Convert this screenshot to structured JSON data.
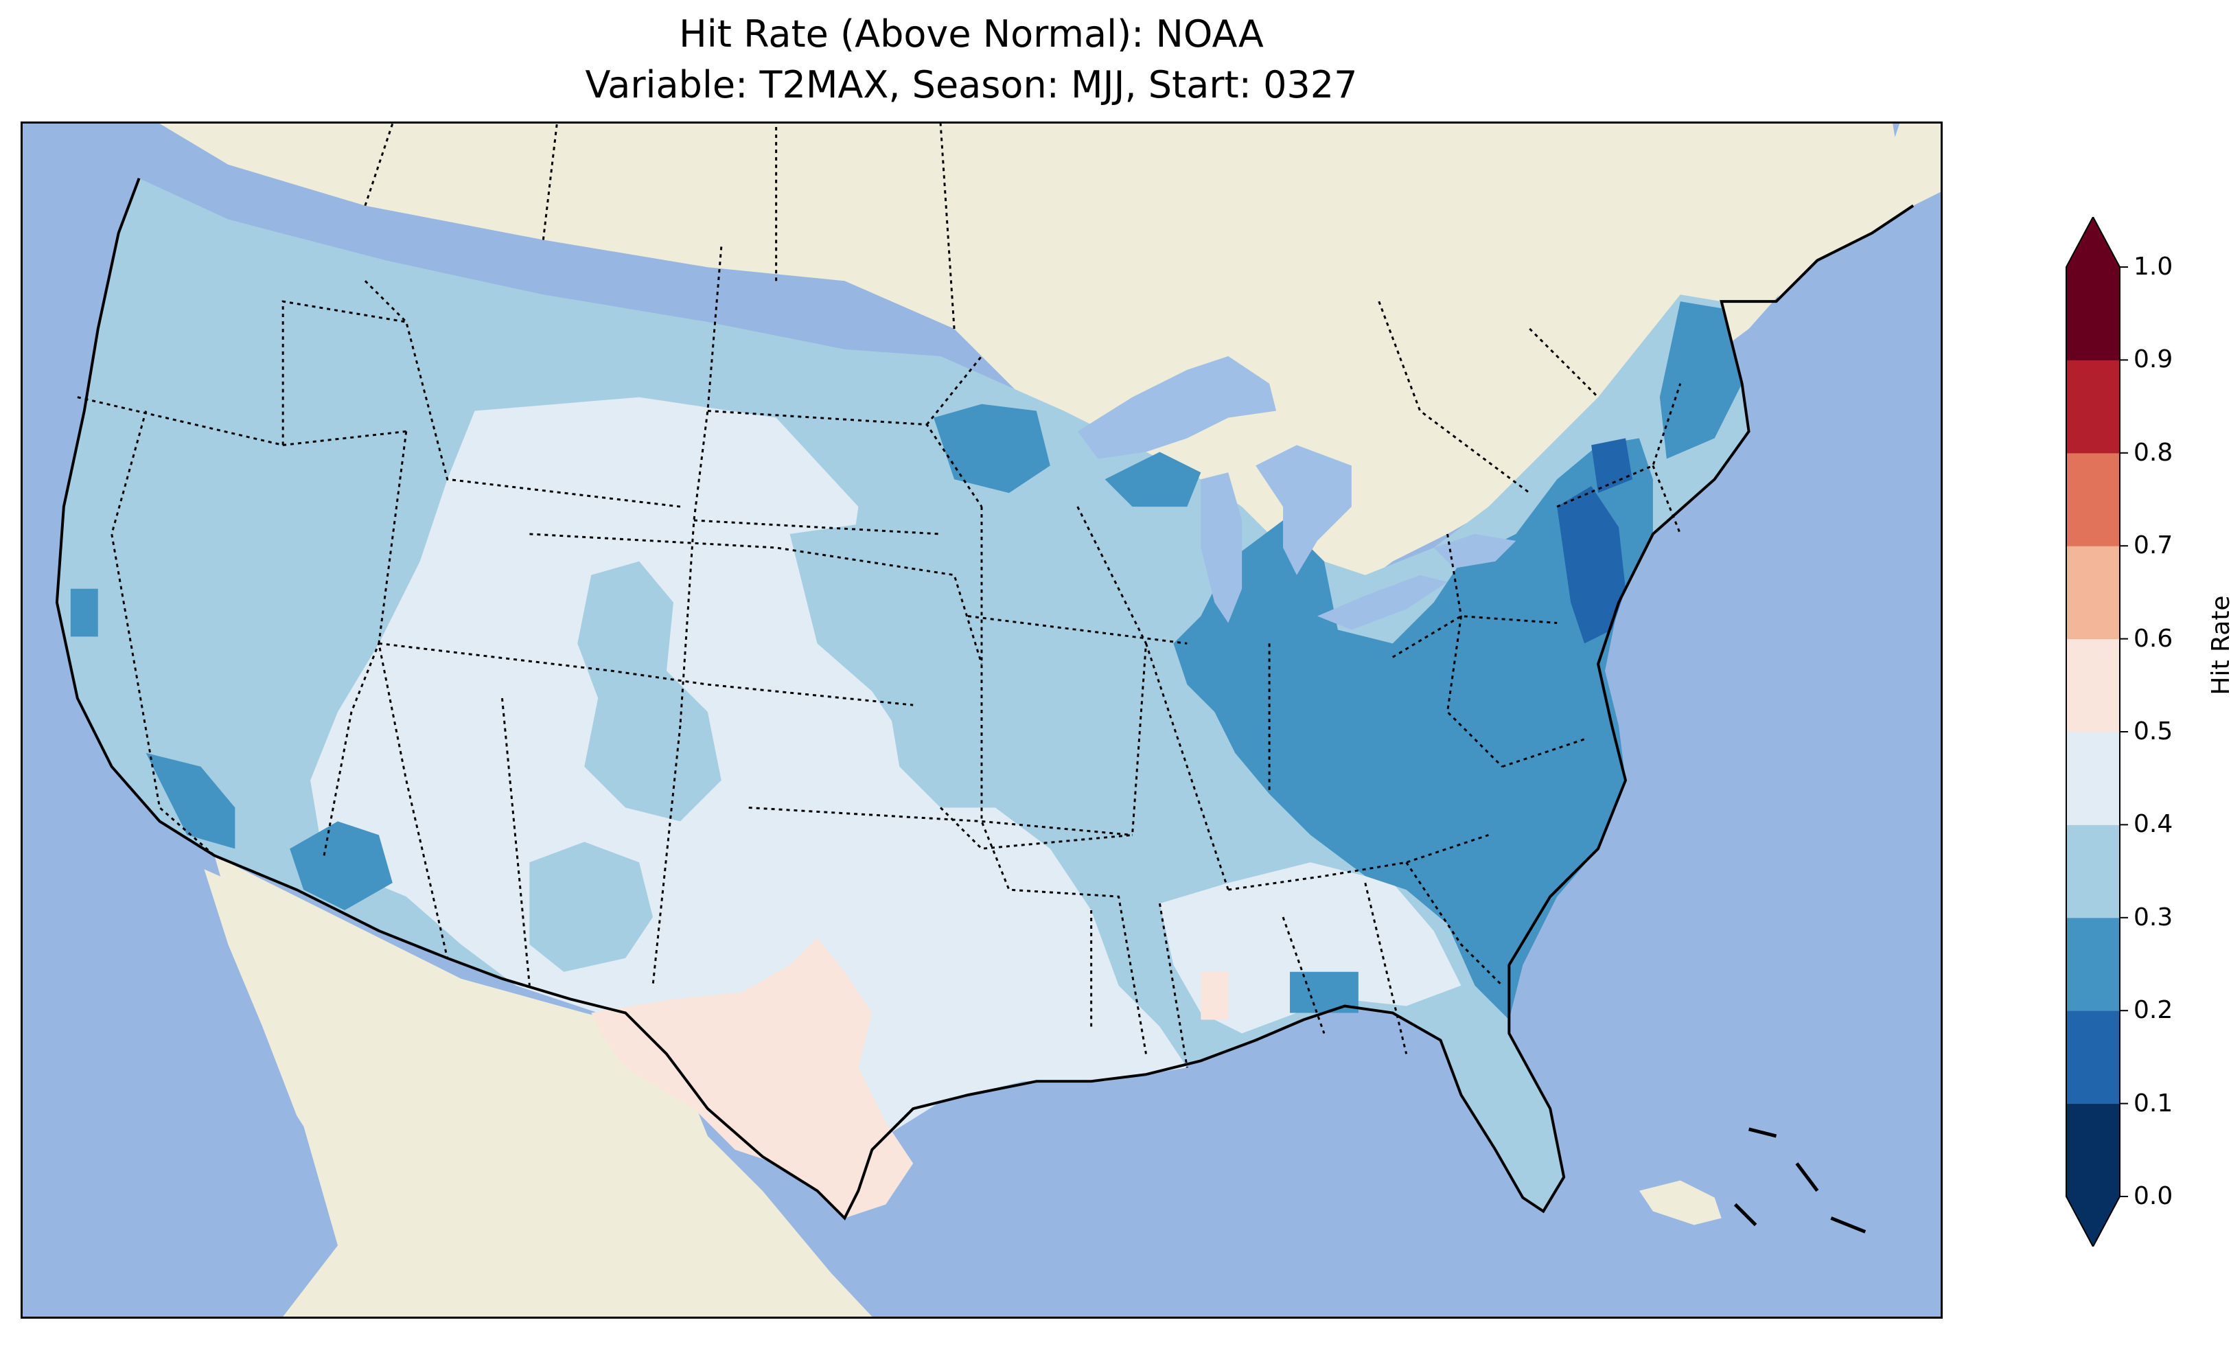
{
  "title": {
    "line1": "Hit Rate (Above Normal): NOAA",
    "line2": "Variable: T2MAX, Season: MJJ, Start: 0327"
  },
  "colors": {
    "ocean": "#97b6e1",
    "land": "#efedda",
    "coastline": "#000000",
    "lakes": "#9fbfe6"
  },
  "colorbar": {
    "label": "Hit Rate",
    "extend": "both",
    "ticks": [
      "0.0",
      "0.1",
      "0.2",
      "0.3",
      "0.4",
      "0.5",
      "0.6",
      "0.7",
      "0.8",
      "0.9",
      "1.0"
    ],
    "bins": [
      {
        "range": [
          0.0,
          0.1
        ],
        "color": "#053061"
      },
      {
        "range": [
          0.1,
          0.2
        ],
        "color": "#2166ac"
      },
      {
        "range": [
          0.2,
          0.3
        ],
        "color": "#4393c3"
      },
      {
        "range": [
          0.3,
          0.4
        ],
        "color": "#a6cee3"
      },
      {
        "range": [
          0.4,
          0.5
        ],
        "color": "#e1ecf4"
      },
      {
        "range": [
          0.5,
          0.6
        ],
        "color": "#f9e5dc"
      },
      {
        "range": [
          0.6,
          0.7
        ],
        "color": "#f4b698"
      },
      {
        "range": [
          0.7,
          0.8
        ],
        "color": "#e0735a"
      },
      {
        "range": [
          0.8,
          0.9
        ],
        "color": "#b41f2e"
      },
      {
        "range": [
          0.9,
          1.0
        ],
        "color": "#67001f"
      }
    ]
  }
}
